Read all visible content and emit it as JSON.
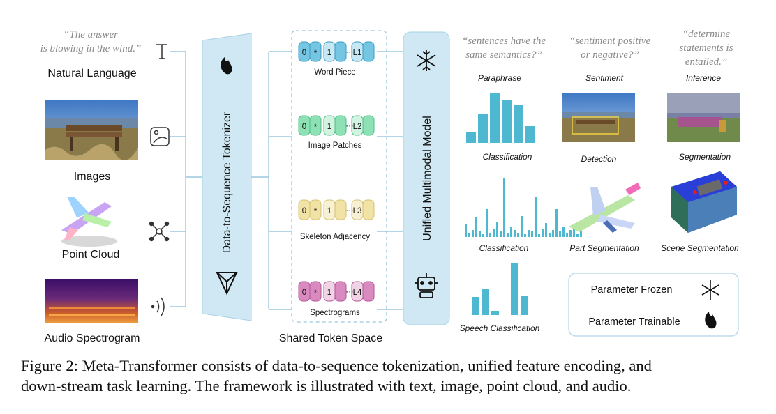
{
  "inputs": {
    "text_quote_1": "“The answer",
    "text_quote_2": "is blowing in the wind.”",
    "natural_language": "Natural Language",
    "images": "Images",
    "point_cloud": "Point Cloud",
    "audio": "Audio Spectrogram"
  },
  "tokenizer_label": "Data-to-Sequence Tokenizer",
  "token_space": {
    "title": "Shared Token Space",
    "groups": [
      {
        "label": "Word Piece",
        "last": "L1"
      },
      {
        "label": "Image Patches",
        "last": "L2"
      },
      {
        "label": "Skeleton Adjacency",
        "last": "L3"
      },
      {
        "label": "Spectrograms",
        "last": "L4"
      }
    ],
    "tok0": "0",
    "tokstar": "*",
    "tok1": "1",
    "dots": "···"
  },
  "model_label": "Unified Multimodal Model",
  "questions": {
    "q1_1": "“sentences have the",
    "q1_2": "same semantics?”",
    "q2_1": "“sentiment positive",
    "q2_2": "or negative?”",
    "q3_1": "“determine",
    "q3_2": "statements is",
    "q3_3": "entailed.”"
  },
  "tasks": {
    "paraphrase": "Paraphrase",
    "sentiment": "Sentiment",
    "inference": "Inference",
    "classification_1": "Classification",
    "detection": "Detection",
    "segmentation": "Segmentation",
    "classification_2": "Classification",
    "part_seg": "Part Segmentation",
    "scene_seg": "Scene Segmentation",
    "speech_cls": "Speech Classification"
  },
  "legend": {
    "frozen": "Parameter Frozen",
    "trainable": "Parameter Trainable"
  },
  "caption": {
    "line1": "Figure 2: Meta-Transformer consists of data-to-sequence tokenization, unified feature encoding, and",
    "line2": "down-stream task learning. The framework is illustrated with text, image, point cloud, and audio."
  },
  "colors": {
    "panel_blue": "#cfe8f3",
    "line_blue": "#9cc7de",
    "bar_blue": "#4db8cf",
    "token_blue": "#74c6e3",
    "token_green": "#8ee0b5",
    "token_yellow": "#f1e2a6",
    "token_pink": "#d98bbf"
  }
}
